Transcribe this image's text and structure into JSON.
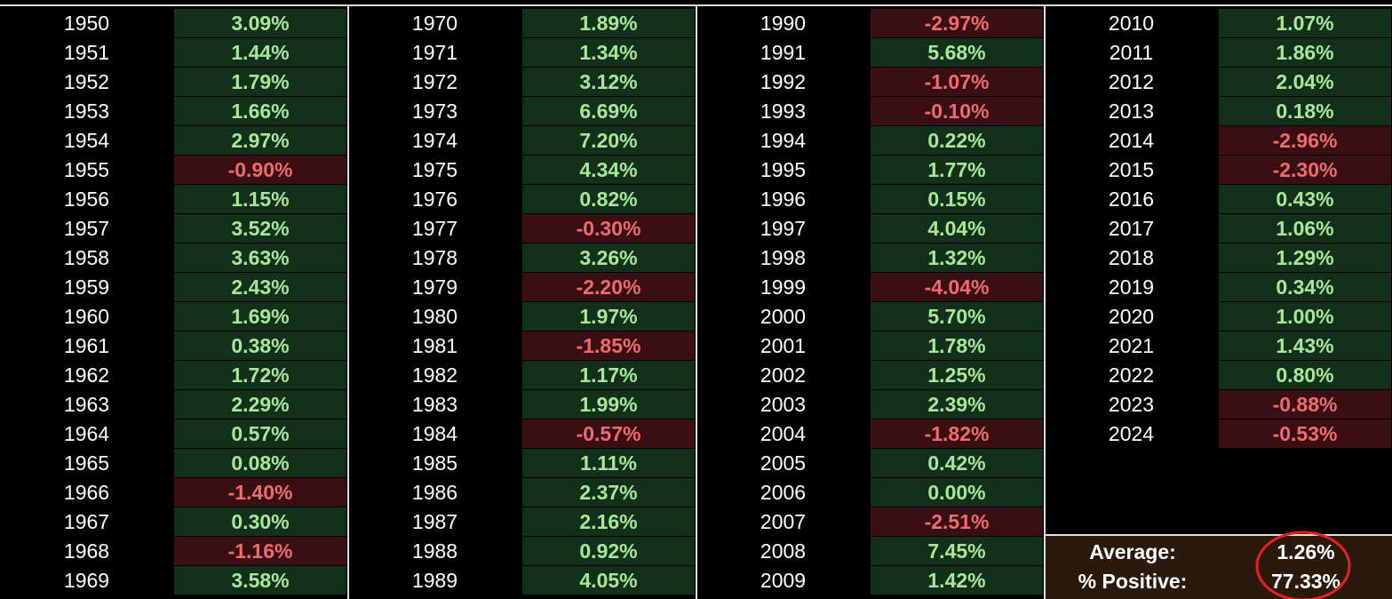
{
  "columns": [
    {
      "rows": [
        [
          "1950",
          "3.09%"
        ],
        [
          "1951",
          "1.44%"
        ],
        [
          "1952",
          "1.79%"
        ],
        [
          "1953",
          "1.66%"
        ],
        [
          "1954",
          "2.97%"
        ],
        [
          "1955",
          "-0.90%"
        ],
        [
          "1956",
          "1.15%"
        ],
        [
          "1957",
          "3.52%"
        ],
        [
          "1958",
          "3.63%"
        ],
        [
          "1959",
          "2.43%"
        ],
        [
          "1960",
          "1.69%"
        ],
        [
          "1961",
          "0.38%"
        ],
        [
          "1962",
          "1.72%"
        ],
        [
          "1963",
          "2.29%"
        ],
        [
          "1964",
          "0.57%"
        ],
        [
          "1965",
          "0.08%"
        ],
        [
          "1966",
          "-1.40%"
        ],
        [
          "1967",
          "0.30%"
        ],
        [
          "1968",
          "-1.16%"
        ],
        [
          "1969",
          "3.58%"
        ]
      ]
    },
    {
      "rows": [
        [
          "1970",
          "1.89%"
        ],
        [
          "1971",
          "1.34%"
        ],
        [
          "1972",
          "3.12%"
        ],
        [
          "1973",
          "6.69%"
        ],
        [
          "1974",
          "7.20%"
        ],
        [
          "1975",
          "4.34%"
        ],
        [
          "1976",
          "0.82%"
        ],
        [
          "1977",
          "-0.30%"
        ],
        [
          "1978",
          "3.26%"
        ],
        [
          "1979",
          "-2.20%"
        ],
        [
          "1980",
          "1.97%"
        ],
        [
          "1981",
          "-1.85%"
        ],
        [
          "1982",
          "1.17%"
        ],
        [
          "1983",
          "1.99%"
        ],
        [
          "1984",
          "-0.57%"
        ],
        [
          "1985",
          "1.11%"
        ],
        [
          "1986",
          "2.37%"
        ],
        [
          "1987",
          "2.16%"
        ],
        [
          "1988",
          "0.92%"
        ],
        [
          "1989",
          "4.05%"
        ]
      ]
    },
    {
      "rows": [
        [
          "1990",
          "-2.97%"
        ],
        [
          "1991",
          "5.68%"
        ],
        [
          "1992",
          "-1.07%"
        ],
        [
          "1993",
          "-0.10%"
        ],
        [
          "1994",
          "0.22%"
        ],
        [
          "1995",
          "1.77%"
        ],
        [
          "1996",
          "0.15%"
        ],
        [
          "1997",
          "4.04%"
        ],
        [
          "1998",
          "1.32%"
        ],
        [
          "1999",
          "-4.04%"
        ],
        [
          "2000",
          "5.70%"
        ],
        [
          "2001",
          "1.78%"
        ],
        [
          "2002",
          "1.25%"
        ],
        [
          "2003",
          "2.39%"
        ],
        [
          "2004",
          "-1.82%"
        ],
        [
          "2005",
          "0.42%"
        ],
        [
          "2006",
          "0.00%"
        ],
        [
          "2007",
          "-2.51%"
        ],
        [
          "2008",
          "7.45%"
        ],
        [
          "2009",
          "1.42%"
        ]
      ]
    },
    {
      "rows": [
        [
          "2010",
          "1.07%"
        ],
        [
          "2011",
          "1.86%"
        ],
        [
          "2012",
          "2.04%"
        ],
        [
          "2013",
          "0.18%"
        ],
        [
          "2014",
          "-2.96%"
        ],
        [
          "2015",
          "-2.30%"
        ],
        [
          "2016",
          "0.43%"
        ],
        [
          "2017",
          "1.06%"
        ],
        [
          "2018",
          "1.29%"
        ],
        [
          "2019",
          "0.34%"
        ],
        [
          "2020",
          "1.00%"
        ],
        [
          "2021",
          "1.43%"
        ],
        [
          "2022",
          "0.80%"
        ],
        [
          "2023",
          "-0.88%"
        ],
        [
          "2024",
          "-0.53%"
        ]
      ]
    }
  ],
  "summary": {
    "rows": [
      [
        "Average:",
        "1.26%"
      ],
      [
        "% Positive:",
        "77.33%"
      ]
    ]
  }
}
